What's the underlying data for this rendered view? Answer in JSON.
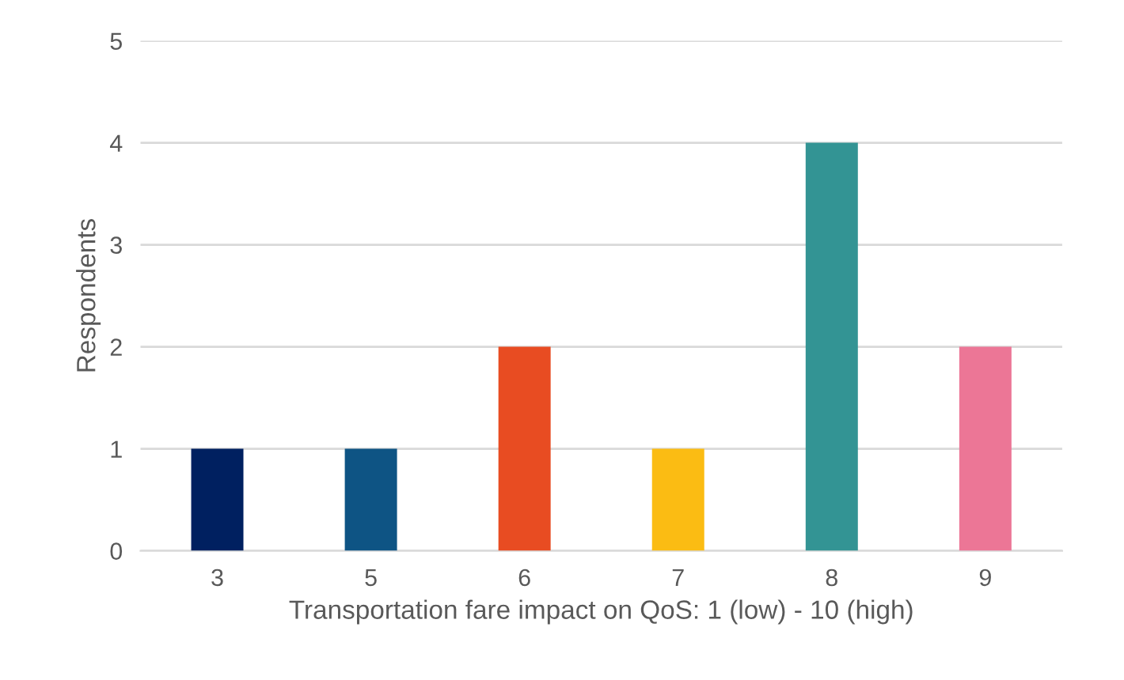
{
  "chart_data": {
    "type": "bar",
    "categories": [
      "3",
      "5",
      "6",
      "7",
      "8",
      "9"
    ],
    "values": [
      1,
      1,
      2,
      1,
      4,
      2
    ],
    "colors": [
      "#002060",
      "#0e5484",
      "#e84c22",
      "#fbbc13",
      "#339494",
      "#ec7696"
    ],
    "xlabel": "Transportation fare impact on QoS: 1 (low) - 10 (high)",
    "ylabel": "Respondents",
    "ylim": [
      0,
      5
    ],
    "yticks": [
      0,
      1,
      2,
      3,
      4,
      5
    ],
    "grid": "y"
  }
}
